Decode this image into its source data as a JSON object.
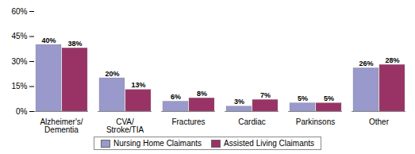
{
  "chart_data": {
    "type": "bar",
    "categories": [
      "Alzheimer's/\nDementia",
      "CVA/\nStroke/TIA",
      "Fractures",
      "Cardiac",
      "Parkinsons",
      "Other"
    ],
    "series": [
      {
        "name": "Nursing Home Claimants",
        "color": "#9999CC",
        "values": [
          40,
          20,
          6,
          3,
          5,
          26
        ],
        "value_labels": [
          "40%",
          "20%",
          "6%",
          "3%",
          "5%",
          "26%"
        ]
      },
      {
        "name": "Assisted Living Claimants",
        "color": "#993366",
        "values": [
          38,
          13,
          8,
          7,
          5,
          28
        ],
        "value_labels": [
          "38%",
          "13%",
          "8%",
          "7%",
          "5%",
          "28%"
        ]
      }
    ],
    "ylim": [
      0,
      60
    ],
    "yticks": [
      {
        "value": 0,
        "label": "0%"
      },
      {
        "value": 15,
        "label": "15%"
      },
      {
        "value": 30,
        "label": "30%"
      },
      {
        "value": 45,
        "label": "45%"
      },
      {
        "value": 60,
        "label": "60%"
      }
    ],
    "data_labels": true,
    "grid": false,
    "legend": "bottom"
  }
}
